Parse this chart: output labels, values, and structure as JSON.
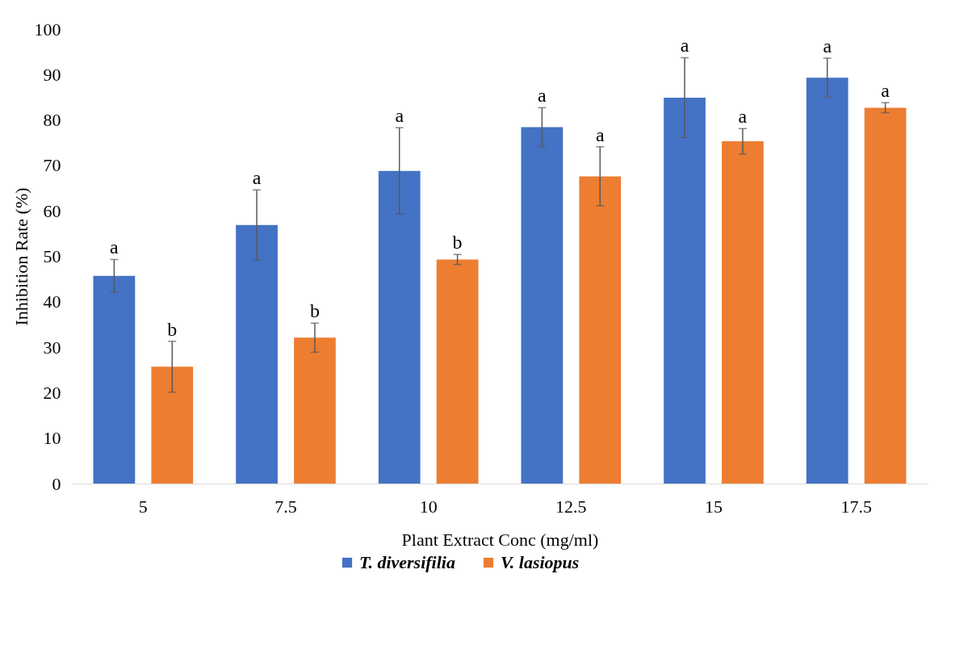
{
  "chart_data": {
    "type": "bar",
    "xlabel": "Plant Extract Conc (mg/ml)",
    "ylabel": "Inhibition Rate (%)",
    "categories": [
      "5",
      "7.5",
      "10",
      "12.5",
      "15",
      "17.5"
    ],
    "series": [
      {
        "name": "T. diversifilia",
        "color": "#4472c4",
        "values": [
          45.7,
          56.9,
          68.8,
          78.4,
          84.9,
          89.3
        ],
        "errors": [
          3.6,
          7.7,
          9.5,
          4.3,
          8.8,
          4.3
        ],
        "value_labels": [
          "a",
          "a",
          "a",
          "a",
          "a",
          "a"
        ]
      },
      {
        "name": "V. lasiopus",
        "color": "#ed7d31",
        "values": [
          25.7,
          32.1,
          49.3,
          67.6,
          75.3,
          82.7
        ],
        "errors": [
          5.6,
          3.2,
          1.1,
          6.5,
          2.8,
          1.1
        ],
        "value_labels": [
          "b",
          "b",
          "b",
          "a",
          "a",
          "a"
        ]
      }
    ],
    "ylim": [
      0,
      100
    ],
    "yticks": [
      0,
      10,
      20,
      30,
      40,
      50,
      60,
      70,
      80,
      90,
      100
    ],
    "grid": false,
    "legend": "bottom"
  }
}
